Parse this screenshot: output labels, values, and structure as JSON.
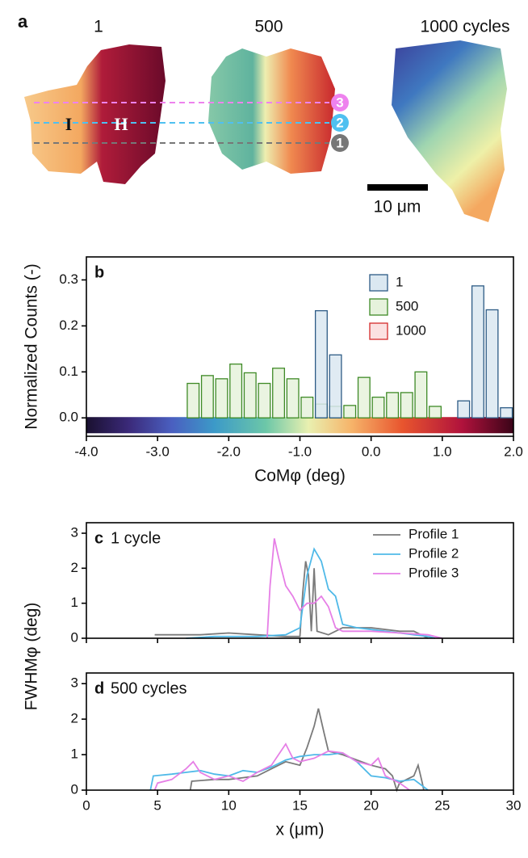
{
  "image_panel": {
    "label": "a",
    "titles": [
      "1",
      "500",
      "1000 cycles"
    ],
    "regions": [
      "I",
      "H"
    ],
    "profile_markers": [
      "3",
      "2",
      "1"
    ],
    "scale_bar": "10 μm"
  },
  "chart_data": [
    {
      "type": "histogram",
      "panel_label": "b",
      "x_label": "CoMφ (deg)",
      "y_label": "Normalized Counts (-)",
      "bins": [
        -3.6,
        -3.4,
        -3.2,
        -3.0,
        -2.8,
        -2.6,
        -2.4,
        -2.2,
        -2.0,
        -1.8,
        -1.6,
        -1.4,
        -1.2,
        -1.0,
        -0.8,
        -0.6,
        -0.4,
        -0.2,
        0.0,
        0.2,
        0.4,
        0.6,
        0.8,
        1.0,
        1.2,
        1.4,
        1.6,
        1.8,
        2.0
      ],
      "series": [
        {
          "name": "1000",
          "color": "#d42a2a",
          "fill": "#fbe1e1",
          "values": [
            null,
            null,
            null,
            null,
            null,
            null,
            null,
            null,
            null,
            null,
            null,
            null,
            null,
            null,
            null,
            null,
            null,
            null,
            null,
            null,
            null,
            null,
            null,
            null,
            null,
            null,
            null,
            null
          ]
        },
        {
          "name": "500",
          "color": "#3e8a26",
          "fill": "#e6f2dc",
          "values": [
            null,
            null,
            null,
            null,
            null,
            0.075,
            0.092,
            0.085,
            0.117,
            0.098,
            0.075,
            0.108,
            0.085,
            0.045,
            0.03,
            0.025,
            0.027,
            0.088,
            0.045,
            0.055,
            0.055,
            0.1,
            0.025,
            null,
            null,
            null,
            null,
            null
          ]
        },
        {
          "name": "1",
          "color": "#2d5b85",
          "fill": "#dbe8f1",
          "values": [
            null,
            null,
            null,
            null,
            null,
            null,
            null,
            null,
            null,
            null,
            null,
            null,
            null,
            null,
            0.233,
            0.137,
            null,
            null,
            null,
            null,
            null,
            null,
            null,
            null,
            0.037,
            0.287,
            0.235,
            0.022
          ]
        }
      ],
      "red_values_note_free": null,
      "xlim": [
        -4,
        2
      ],
      "xticks": [
        {
          "value": -4,
          "label": "-4.0"
        },
        {
          "value": -3,
          "label": "-3.0"
        },
        {
          "value": -2,
          "label": "-2.0"
        },
        {
          "value": -1,
          "label": "-1.0"
        },
        {
          "value": 0,
          "label": "0.0"
        },
        {
          "value": 1,
          "label": "1.0"
        },
        {
          "value": 2,
          "label": "2.0"
        }
      ],
      "ylim": [
        -0.04,
        0.35
      ],
      "yticks": [
        {
          "value": 0,
          "label": "0.0"
        },
        0.1,
        0.2,
        0.3
      ],
      "legend": "upper-right",
      "colorbar": true
    },
    {
      "type": "line",
      "panel_label": "c",
      "title": "1 cycle",
      "y_label": "FWHMφ (deg)",
      "xlim": [
        0,
        30
      ],
      "xticks": [
        0,
        5,
        10,
        15,
        20,
        25,
        30
      ],
      "xtick_labels": false,
      "ylim": [
        0,
        3.3
      ],
      "yticks": [
        0,
        1,
        2,
        3
      ],
      "legend": "upper-right",
      "series": [
        {
          "name": "Profile 1",
          "color": "#7a7a7a",
          "x": [
            4.8,
            6,
            8,
            10,
            12,
            14,
            15,
            15.2,
            15.4,
            15.6,
            15.8,
            16,
            16.2,
            17,
            18,
            20,
            22,
            23,
            24
          ],
          "values": [
            0.1,
            0.1,
            0.1,
            0.15,
            0.1,
            0.05,
            0.05,
            1.3,
            2.2,
            1.8,
            0.2,
            2.0,
            0.2,
            0.1,
            0.3,
            0.3,
            0.2,
            0.2,
            0
          ]
        },
        {
          "name": "Profile 2",
          "color": "#4fb9e8",
          "x": [
            7,
            9,
            12,
            14,
            15,
            15.5,
            16,
            16.5,
            17,
            17.5,
            18,
            19,
            21,
            23,
            24,
            24.5
          ],
          "values": [
            0,
            0.05,
            0.05,
            0.1,
            0.3,
            1.8,
            2.55,
            2.2,
            1.4,
            1.2,
            0.4,
            0.3,
            0.2,
            0.1,
            0.05,
            0
          ]
        },
        {
          "name": "Profile 3",
          "color": "#e67fe6",
          "x": [
            12.7,
            12.9,
            13.2,
            13.5,
            14,
            14.5,
            15,
            15.5,
            16,
            16.5,
            17,
            17.5,
            18,
            20,
            22,
            24,
            25
          ],
          "values": [
            0,
            1.5,
            2.85,
            2.3,
            1.5,
            1.2,
            0.8,
            1.0,
            1.0,
            1.2,
            0.9,
            0.3,
            0.2,
            0.2,
            0.15,
            0.1,
            0
          ]
        }
      ]
    },
    {
      "type": "line",
      "panel_label": "d",
      "title": "500 cycles",
      "x_label": "x (μm)",
      "xlim": [
        0,
        30
      ],
      "xticks": [
        0,
        5,
        10,
        15,
        20,
        25,
        30
      ],
      "ylim": [
        0,
        3.3
      ],
      "yticks": [
        0,
        1,
        2,
        3
      ],
      "series": [
        {
          "color": "#7a7a7a",
          "x": [
            7.3,
            7.4,
            9,
            10,
            11,
            12,
            13,
            14,
            15,
            15.5,
            16,
            16.3,
            16.7,
            17,
            18,
            19,
            20,
            21,
            21.5,
            21.8,
            22,
            23,
            23.3,
            23.6,
            23.7
          ],
          "values": [
            0,
            0.25,
            0.3,
            0.3,
            0.35,
            0.4,
            0.6,
            0.8,
            0.7,
            1.2,
            1.8,
            2.3,
            1.6,
            1.1,
            1.0,
            0.85,
            0.7,
            0.6,
            0.4,
            0,
            0.2,
            0.4,
            0.7,
            0.2,
            0
          ]
        },
        {
          "color": "#4fb9e8",
          "x": [
            4.5,
            4.7,
            6,
            7,
            8,
            9,
            10,
            11,
            12,
            13,
            14,
            15,
            16,
            17,
            18,
            19,
            20,
            21,
            22,
            23,
            24
          ],
          "values": [
            0,
            0.4,
            0.45,
            0.5,
            0.55,
            0.45,
            0.4,
            0.55,
            0.5,
            0.65,
            0.85,
            0.95,
            1.0,
            1.0,
            1.05,
            0.8,
            0.4,
            0.35,
            0.25,
            0.3,
            0
          ]
        },
        {
          "color": "#e67fe6",
          "x": [
            4.8,
            5,
            6,
            7,
            7.5,
            8,
            9,
            10,
            11,
            12,
            13,
            14,
            14.5,
            15,
            16,
            17,
            18,
            19,
            20,
            20.5,
            21,
            22,
            22.7
          ],
          "values": [
            0,
            0.2,
            0.3,
            0.6,
            0.8,
            0.5,
            0.3,
            0.4,
            0.25,
            0.5,
            0.7,
            1.3,
            0.9,
            0.8,
            0.9,
            1.1,
            1.05,
            0.8,
            0.7,
            0.9,
            0.4,
            0.2,
            0
          ]
        }
      ]
    }
  ]
}
